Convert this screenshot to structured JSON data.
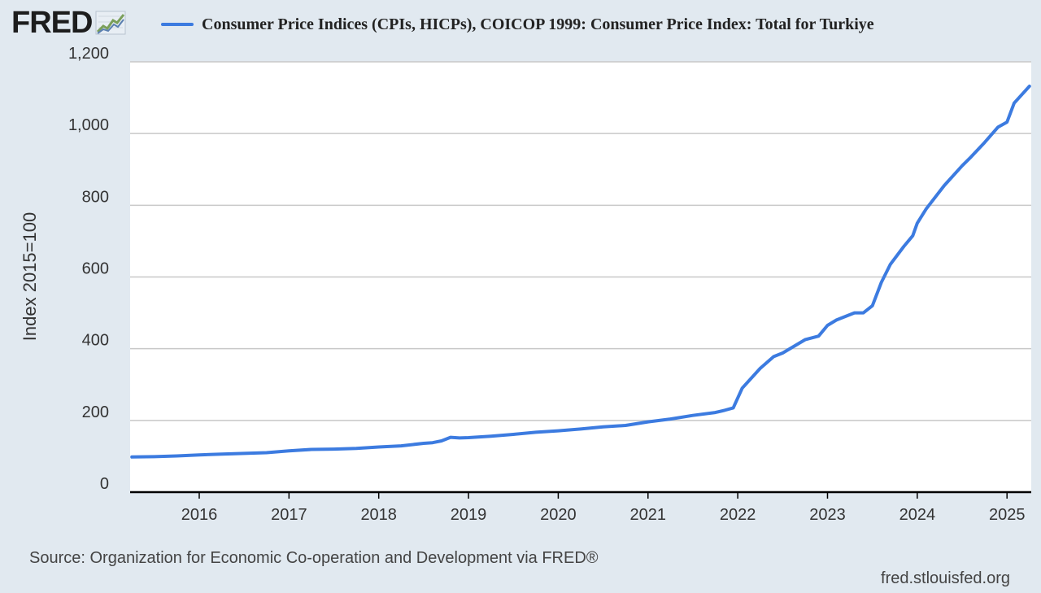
{
  "header": {
    "logo_text": "FRED",
    "logo_icon": "line-chart-icon"
  },
  "legend": {
    "label": "Consumer Price Indices (CPIs, HICPs), COICOP 1999: Consumer Price Index: Total for Turkiye",
    "color": "#3c7be0"
  },
  "footer": {
    "source": "Source: Organization for Economic Co-operation and Development via FRED®",
    "site": "fred.stlouisfed.org"
  },
  "colors": {
    "background": "#e1e9f0",
    "plot_background": "#ffffff",
    "line": "#3c7be0",
    "grid": "#c8c8c8",
    "axis": "#000000"
  },
  "chart_data": {
    "type": "line",
    "title": "",
    "xlabel": "",
    "ylabel": "Index 2015=100",
    "ylim": [
      0,
      1200
    ],
    "xlim": [
      2015.23,
      2025.27
    ],
    "yticks": [
      0,
      200,
      400,
      600,
      800,
      1000,
      1200
    ],
    "ytick_labels": [
      "0",
      "200",
      "400",
      "600",
      "800",
      "1,000",
      "1,200"
    ],
    "xticks": [
      2016,
      2017,
      2018,
      2019,
      2020,
      2021,
      2022,
      2023,
      2024,
      2025
    ],
    "xtick_labels": [
      "2016",
      "2017",
      "2018",
      "2019",
      "2020",
      "2021",
      "2022",
      "2023",
      "2024",
      "2025"
    ],
    "grid": true,
    "legend_position": "top",
    "series": [
      {
        "name": "Consumer Price Indices (CPIs, HICPs), COICOP 1999: Consumer Price Index: Total for Turkiye",
        "x": [
          2015.25,
          2015.5,
          2015.75,
          2016.0,
          2016.25,
          2016.5,
          2016.75,
          2017.0,
          2017.25,
          2017.5,
          2017.75,
          2018.0,
          2018.25,
          2018.5,
          2018.6,
          2018.7,
          2018.8,
          2018.9,
          2019.0,
          2019.25,
          2019.5,
          2019.75,
          2020.0,
          2020.25,
          2020.5,
          2020.75,
          2021.0,
          2021.25,
          2021.5,
          2021.75,
          2021.85,
          2021.95,
          2022.05,
          2022.25,
          2022.4,
          2022.5,
          2022.75,
          2022.9,
          2023.0,
          2023.1,
          2023.3,
          2023.4,
          2023.5,
          2023.6,
          2023.7,
          2023.85,
          2023.95,
          2024.0,
          2024.1,
          2024.3,
          2024.5,
          2024.6,
          2024.75,
          2024.9,
          2025.0,
          2025.08,
          2025.17,
          2025.25
        ],
        "values": [
          98,
          99,
          101,
          104,
          106,
          108,
          110,
          115,
          119,
          120,
          122,
          126,
          129,
          136,
          138,
          143,
          153,
          151,
          152,
          156,
          161,
          167,
          171,
          176,
          182,
          186,
          196,
          204,
          214,
          222,
          228,
          235,
          290,
          345,
          378,
          388,
          425,
          435,
          465,
          480,
          500,
          500,
          520,
          585,
          635,
          685,
          715,
          750,
          790,
          855,
          910,
          935,
          975,
          1018,
          1032,
          1085,
          1110,
          1132
        ]
      }
    ]
  }
}
